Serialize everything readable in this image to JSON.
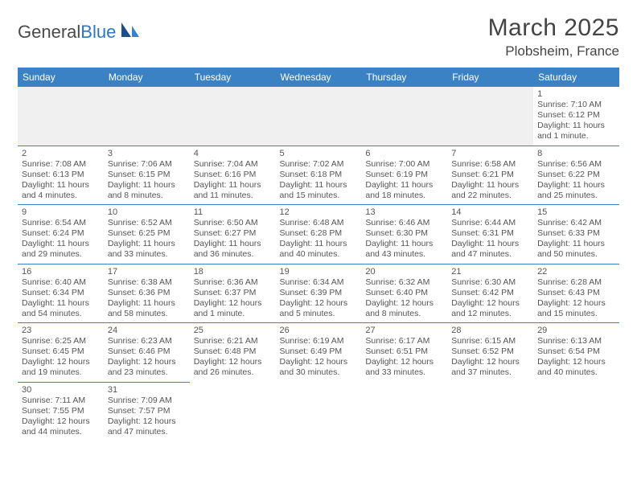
{
  "logo": {
    "text1": "General",
    "text2": "Blue"
  },
  "title": "March 2025",
  "location": "Plobsheim, France",
  "colors": {
    "header_bg": "#3b82c4",
    "header_text": "#ffffff",
    "border": "#3b82c4",
    "text": "#555555",
    "title_text": "#444444",
    "logo_gray": "#4a4a4a",
    "logo_blue": "#2b77c0",
    "gray_cell": "#f0f0f0",
    "page_bg": "#ffffff"
  },
  "day_headers": [
    "Sunday",
    "Monday",
    "Tuesday",
    "Wednesday",
    "Thursday",
    "Friday",
    "Saturday"
  ],
  "weeks": [
    [
      null,
      null,
      null,
      null,
      null,
      null,
      {
        "n": "1",
        "sunrise": "7:10 AM",
        "sunset": "6:12 PM",
        "daylight": "11 hours and 1 minute."
      }
    ],
    [
      {
        "n": "2",
        "sunrise": "7:08 AM",
        "sunset": "6:13 PM",
        "daylight": "11 hours and 4 minutes."
      },
      {
        "n": "3",
        "sunrise": "7:06 AM",
        "sunset": "6:15 PM",
        "daylight": "11 hours and 8 minutes."
      },
      {
        "n": "4",
        "sunrise": "7:04 AM",
        "sunset": "6:16 PM",
        "daylight": "11 hours and 11 minutes."
      },
      {
        "n": "5",
        "sunrise": "7:02 AM",
        "sunset": "6:18 PM",
        "daylight": "11 hours and 15 minutes."
      },
      {
        "n": "6",
        "sunrise": "7:00 AM",
        "sunset": "6:19 PM",
        "daylight": "11 hours and 18 minutes."
      },
      {
        "n": "7",
        "sunrise": "6:58 AM",
        "sunset": "6:21 PM",
        "daylight": "11 hours and 22 minutes."
      },
      {
        "n": "8",
        "sunrise": "6:56 AM",
        "sunset": "6:22 PM",
        "daylight": "11 hours and 25 minutes."
      }
    ],
    [
      {
        "n": "9",
        "sunrise": "6:54 AM",
        "sunset": "6:24 PM",
        "daylight": "11 hours and 29 minutes."
      },
      {
        "n": "10",
        "sunrise": "6:52 AM",
        "sunset": "6:25 PM",
        "daylight": "11 hours and 33 minutes."
      },
      {
        "n": "11",
        "sunrise": "6:50 AM",
        "sunset": "6:27 PM",
        "daylight": "11 hours and 36 minutes."
      },
      {
        "n": "12",
        "sunrise": "6:48 AM",
        "sunset": "6:28 PM",
        "daylight": "11 hours and 40 minutes."
      },
      {
        "n": "13",
        "sunrise": "6:46 AM",
        "sunset": "6:30 PM",
        "daylight": "11 hours and 43 minutes."
      },
      {
        "n": "14",
        "sunrise": "6:44 AM",
        "sunset": "6:31 PM",
        "daylight": "11 hours and 47 minutes."
      },
      {
        "n": "15",
        "sunrise": "6:42 AM",
        "sunset": "6:33 PM",
        "daylight": "11 hours and 50 minutes."
      }
    ],
    [
      {
        "n": "16",
        "sunrise": "6:40 AM",
        "sunset": "6:34 PM",
        "daylight": "11 hours and 54 minutes."
      },
      {
        "n": "17",
        "sunrise": "6:38 AM",
        "sunset": "6:36 PM",
        "daylight": "11 hours and 58 minutes."
      },
      {
        "n": "18",
        "sunrise": "6:36 AM",
        "sunset": "6:37 PM",
        "daylight": "12 hours and 1 minute."
      },
      {
        "n": "19",
        "sunrise": "6:34 AM",
        "sunset": "6:39 PM",
        "daylight": "12 hours and 5 minutes."
      },
      {
        "n": "20",
        "sunrise": "6:32 AM",
        "sunset": "6:40 PM",
        "daylight": "12 hours and 8 minutes."
      },
      {
        "n": "21",
        "sunrise": "6:30 AM",
        "sunset": "6:42 PM",
        "daylight": "12 hours and 12 minutes."
      },
      {
        "n": "22",
        "sunrise": "6:28 AM",
        "sunset": "6:43 PM",
        "daylight": "12 hours and 15 minutes."
      }
    ],
    [
      {
        "n": "23",
        "sunrise": "6:25 AM",
        "sunset": "6:45 PM",
        "daylight": "12 hours and 19 minutes."
      },
      {
        "n": "24",
        "sunrise": "6:23 AM",
        "sunset": "6:46 PM",
        "daylight": "12 hours and 23 minutes."
      },
      {
        "n": "25",
        "sunrise": "6:21 AM",
        "sunset": "6:48 PM",
        "daylight": "12 hours and 26 minutes."
      },
      {
        "n": "26",
        "sunrise": "6:19 AM",
        "sunset": "6:49 PM",
        "daylight": "12 hours and 30 minutes."
      },
      {
        "n": "27",
        "sunrise": "6:17 AM",
        "sunset": "6:51 PM",
        "daylight": "12 hours and 33 minutes."
      },
      {
        "n": "28",
        "sunrise": "6:15 AM",
        "sunset": "6:52 PM",
        "daylight": "12 hours and 37 minutes."
      },
      {
        "n": "29",
        "sunrise": "6:13 AM",
        "sunset": "6:54 PM",
        "daylight": "12 hours and 40 minutes."
      }
    ],
    [
      {
        "n": "30",
        "sunrise": "7:11 AM",
        "sunset": "7:55 PM",
        "daylight": "12 hours and 44 minutes."
      },
      {
        "n": "31",
        "sunrise": "7:09 AM",
        "sunset": "7:57 PM",
        "daylight": "12 hours and 47 minutes."
      },
      null,
      null,
      null,
      null,
      null
    ]
  ],
  "labels": {
    "sunrise_prefix": "Sunrise: ",
    "sunset_prefix": "Sunset: ",
    "daylight_prefix": "Daylight: "
  }
}
